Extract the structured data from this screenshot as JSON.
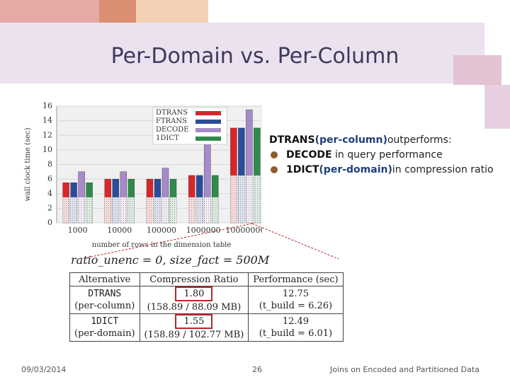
{
  "slide": {
    "title": "Per-Domain vs. Per-Column",
    "date": "09/03/2014",
    "page_number": "26",
    "footer_title": "Joins on Encoded and Partitioned Data"
  },
  "bullets": {
    "lead_word": "DTRANS",
    "lead_qualifier": "(per-column)",
    "lead_rest": "outperforms:",
    "items": [
      {
        "word": "DECODE",
        "qualifier": "",
        "rest": " in query  performance"
      },
      {
        "word": "1DICT",
        "qualifier": "(per-domain)",
        "rest": "in compression ratio"
      }
    ]
  },
  "formula": "ratio_unenc = 0, size_fact = 500M",
  "table": {
    "headers": [
      "Alternative",
      "Compression Ratio",
      "Performance (sec)"
    ],
    "rows": [
      {
        "alt_name": "DTRANS",
        "alt_type": "(per-column)",
        "ratio": "1.80",
        "ratio_detail": "(158.89 / 88.09 MB)",
        "perf": "12.75",
        "perf_detail": "(t_build = 6.26)"
      },
      {
        "alt_name": "1DICT",
        "alt_type": "(per-domain)",
        "ratio": "1.55",
        "ratio_detail": "(158.89 / 102.77 MB)",
        "perf": "12.49",
        "perf_detail": "(t_build = 6.01)"
      }
    ]
  },
  "colors": {
    "DTRANS": "#d9262b",
    "FTRANS": "#2b4c9b",
    "DECODE": "#a58bc9",
    "1DICT": "#2f8a4c"
  },
  "chart_data": {
    "type": "bar",
    "xlabel": "number of rows in the dimension table",
    "ylabel": "wall clock time (sec)",
    "ylim": [
      0,
      16
    ],
    "yticks": [
      0,
      2,
      4,
      6,
      8,
      10,
      12,
      14,
      16
    ],
    "categories": [
      "1000",
      "10000",
      "100000",
      "1000000",
      "10000000"
    ],
    "legend_position": "top-right",
    "series": [
      {
        "name": "DTRANS",
        "values": [
          5.5,
          6,
          6,
          6.5,
          13
        ]
      },
      {
        "name": "FTRANS",
        "values": [
          5.5,
          6,
          6,
          6.5,
          13
        ]
      },
      {
        "name": "DECODE",
        "values": [
          7,
          7,
          7.5,
          11,
          15.5
        ]
      },
      {
        "name": "1DICT",
        "values": [
          5.5,
          6,
          6,
          6.5,
          13
        ]
      }
    ],
    "base_segment_values": [
      3.5,
      3.5,
      3.5,
      3.5,
      6.5
    ]
  }
}
